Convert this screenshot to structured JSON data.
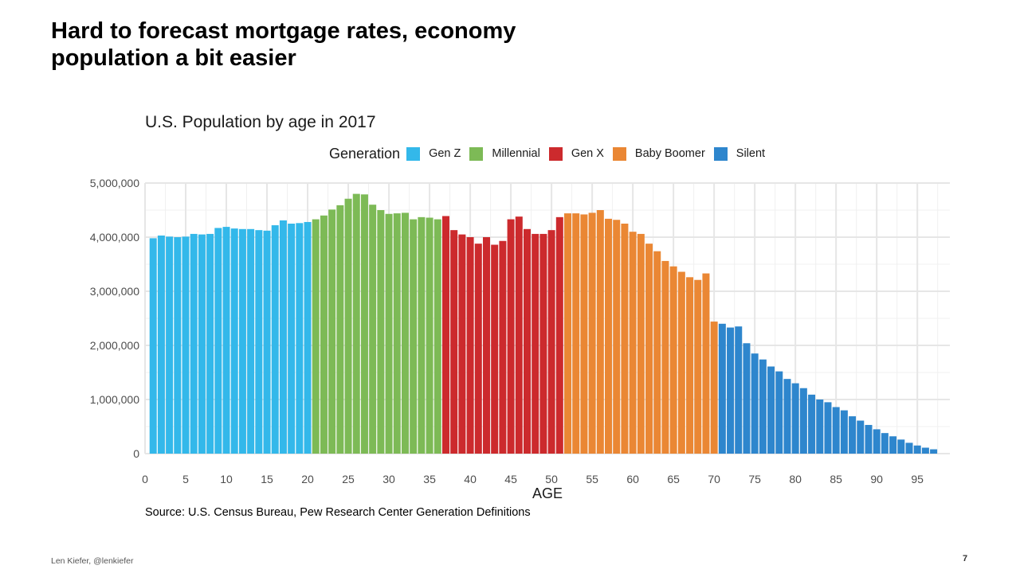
{
  "slide": {
    "title_line1": "Hard to forecast mortgage rates, economy",
    "title_line2": "population a bit easier",
    "footer_left": "Len Kiefer, @lenkiefer",
    "page_number": "7"
  },
  "chart_data": {
    "type": "bar",
    "title": "U.S. Population by age in 2017",
    "xlabel": "AGE",
    "ylabel": "",
    "xlim": [
      0,
      99
    ],
    "ylim": [
      0,
      5000000
    ],
    "x_ticks": [
      "0",
      "5",
      "10",
      "15",
      "20",
      "25",
      "30",
      "35",
      "40",
      "45",
      "50",
      "55",
      "60",
      "65",
      "70",
      "75",
      "80",
      "85",
      "90",
      "95"
    ],
    "y_ticks": [
      "0",
      "1,000,000",
      "2,000,000",
      "3,000,000",
      "4,000,000",
      "5,000,000"
    ],
    "grid": true,
    "legend": {
      "title": "Generation",
      "placement": "top",
      "entries": [
        {
          "name": "Gen Z",
          "color": "#33b8ea"
        },
        {
          "name": "Millennial",
          "color": "#7dba56"
        },
        {
          "name": "Gen X",
          "color": "#cc2a2d"
        },
        {
          "name": "Baby Boomer",
          "color": "#ea8734"
        },
        {
          "name": "Silent",
          "color": "#2e86cd"
        }
      ]
    },
    "series": [
      {
        "name": "Gen Z",
        "x_start": 1,
        "values": [
          3980000,
          4030000,
          4010000,
          4000000,
          4010000,
          4060000,
          4050000,
          4060000,
          4170000,
          4190000,
          4160000,
          4150000,
          4150000,
          4130000,
          4120000,
          4220000,
          4310000,
          4250000,
          4260000,
          4280000
        ]
      },
      {
        "name": "Millennial",
        "x_start": 21,
        "values": [
          4330000,
          4400000,
          4510000,
          4590000,
          4710000,
          4800000,
          4790000,
          4600000,
          4500000,
          4430000,
          4440000,
          4450000,
          4330000,
          4370000,
          4360000,
          4330000
        ]
      },
      {
        "name": "Gen X",
        "x_start": 37,
        "values": [
          4390000,
          4130000,
          4050000,
          4000000,
          3880000,
          4000000,
          3860000,
          3930000,
          4330000,
          4380000,
          4150000,
          4060000,
          4060000,
          4130000,
          4370000
        ]
      },
      {
        "name": "Baby Boomer",
        "x_start": 52,
        "values": [
          4440000,
          4440000,
          4420000,
          4450000,
          4500000,
          4340000,
          4320000,
          4250000,
          4100000,
          4060000,
          3880000,
          3740000,
          3560000,
          3460000,
          3360000,
          3260000,
          3210000,
          3330000,
          2440000
        ]
      },
      {
        "name": "Silent",
        "x_start": 71,
        "values": [
          2400000,
          2330000,
          2350000,
          2040000,
          1850000,
          1740000,
          1610000,
          1520000,
          1380000,
          1300000,
          1210000,
          1090000,
          1000000,
          950000,
          860000,
          800000,
          690000,
          610000,
          530000,
          450000,
          380000,
          320000,
          260000,
          200000,
          150000,
          110000,
          80000
        ]
      }
    ],
    "source": "Source: U.S. Census Bureau, Pew Research Center Generation Definitions"
  }
}
